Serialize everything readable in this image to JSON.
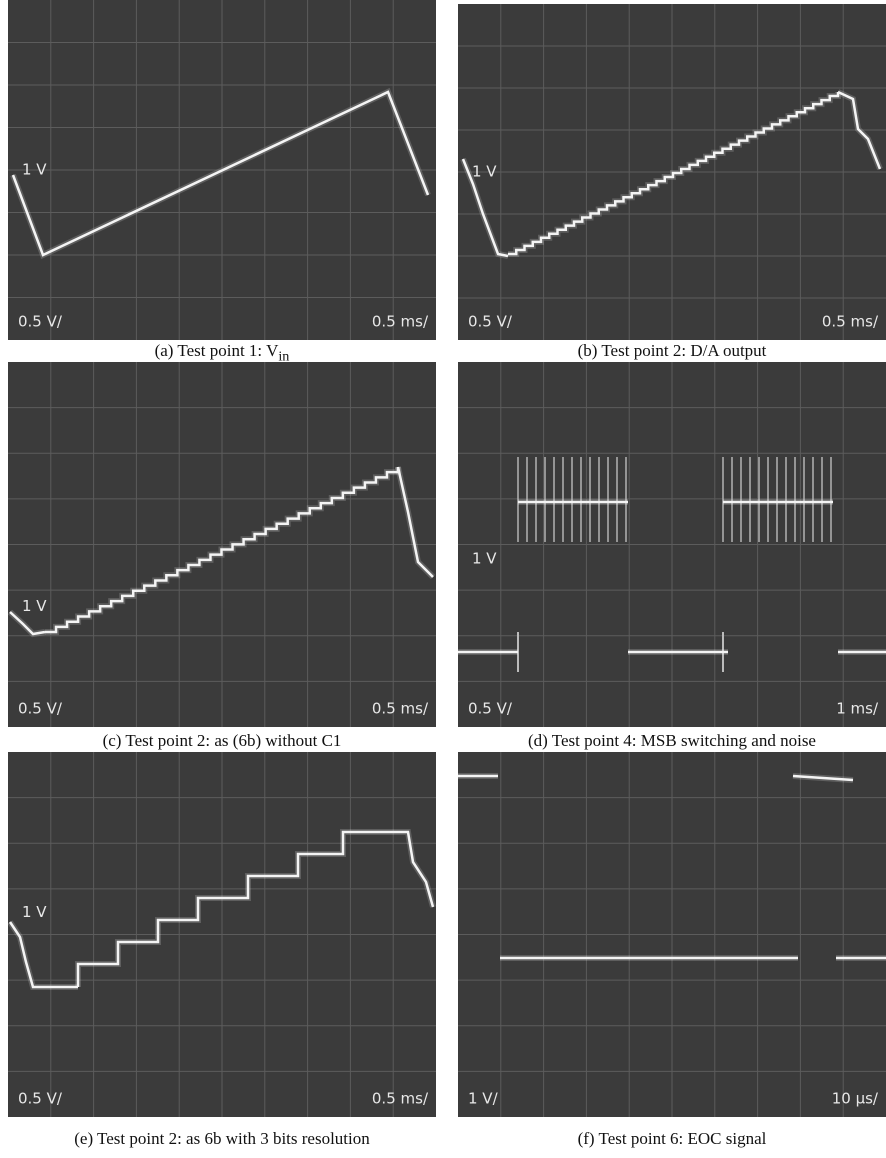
{
  "panels": [
    {
      "level_marker": "1 V",
      "volts_per_div": "0.5 V/",
      "time_per_div": "0.5 ms/",
      "caption": "(a) Test point 1: V",
      "caption_sub": "in"
    },
    {
      "level_marker": "1 V",
      "volts_per_div": "0.5 V/",
      "time_per_div": "0.5 ms/",
      "caption": "(b) Test point 2: D/A output"
    },
    {
      "level_marker": "1 V",
      "volts_per_div": "0.5 V/",
      "time_per_div": "0.5 ms/",
      "caption": "(c) Test point 2: as (6b) without C1"
    },
    {
      "level_marker": "1 V",
      "volts_per_div": "0.5 V/",
      "time_per_div": "1 ms/",
      "caption": "(d) Test point 4: MSB switching and noise"
    },
    {
      "level_marker": "1 V",
      "volts_per_div": "0.5 V/",
      "time_per_div": "0.5 ms/",
      "caption": "(e) Test point 2: as 6b with 3 bits resolution"
    },
    {
      "volts_per_div": "1 V/",
      "time_per_div": "10 μs/",
      "caption": "(f) Test point 6: EOC signal"
    }
  ]
}
